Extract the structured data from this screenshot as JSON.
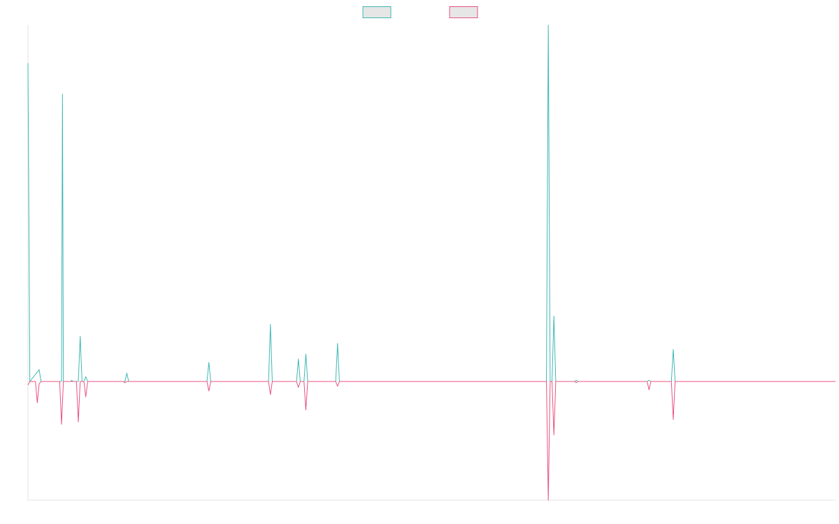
{
  "chart_data": {
    "type": "line",
    "title": "",
    "xlabel": "",
    "ylabel": "",
    "grid": false,
    "legend": "top-center",
    "point_count": 434,
    "ylim": [
      -100,
      300
    ],
    "series": [
      {
        "name": "",
        "color": "#3fb8b3",
        "fill": "#e6e6e6",
        "points": [
          [
            0,
            268
          ],
          [
            1,
            0
          ],
          [
            5,
            8
          ],
          [
            6,
            10
          ],
          [
            7,
            0
          ],
          [
            18,
            0
          ],
          [
            18.5,
            242
          ],
          [
            19,
            0
          ],
          [
            23,
            0
          ],
          [
            23.5,
            1
          ],
          [
            24,
            0
          ],
          [
            27,
            0
          ],
          [
            28,
            38
          ],
          [
            29,
            0
          ],
          [
            30,
            0
          ],
          [
            31,
            4
          ],
          [
            32,
            0
          ],
          [
            52,
            0
          ],
          [
            53,
            7
          ],
          [
            54,
            0
          ],
          [
            96,
            0
          ],
          [
            97,
            16
          ],
          [
            98,
            0
          ],
          [
            129,
            0
          ],
          [
            130,
            48
          ],
          [
            131,
            0
          ],
          [
            144,
            0
          ],
          [
            145,
            19
          ],
          [
            146,
            0
          ],
          [
            148,
            0
          ],
          [
            149,
            23
          ],
          [
            150,
            0
          ],
          [
            165,
            0
          ],
          [
            166,
            32
          ],
          [
            167,
            0
          ],
          [
            278,
            0
          ],
          [
            279,
            300
          ],
          [
            280,
            0
          ],
          [
            281,
            0
          ],
          [
            282,
            55
          ],
          [
            283,
            0
          ],
          [
            293,
            0
          ],
          [
            294,
            1
          ],
          [
            295,
            0
          ],
          [
            332,
            0
          ],
          [
            333,
            1
          ],
          [
            334,
            0
          ],
          [
            345,
            0
          ],
          [
            346,
            27
          ],
          [
            347,
            0
          ],
          [
            433,
            0
          ]
        ]
      },
      {
        "name": "",
        "color": "#e8527f",
        "fill": "#e6e6e6",
        "points": [
          [
            0,
            -3
          ],
          [
            1,
            0
          ],
          [
            4,
            0
          ],
          [
            5,
            -18
          ],
          [
            6,
            -2
          ],
          [
            7,
            0
          ],
          [
            17,
            0
          ],
          [
            18,
            -36
          ],
          [
            19,
            0
          ],
          [
            26,
            0
          ],
          [
            27,
            -34
          ],
          [
            28,
            0
          ],
          [
            30,
            0
          ],
          [
            31,
            -13
          ],
          [
            32,
            0
          ],
          [
            51,
            0
          ],
          [
            52,
            -1
          ],
          [
            53,
            0
          ],
          [
            96,
            0
          ],
          [
            97,
            -8
          ],
          [
            98,
            0
          ],
          [
            129,
            0
          ],
          [
            130,
            -11
          ],
          [
            131,
            0
          ],
          [
            144,
            0
          ],
          [
            145,
            -5
          ],
          [
            146,
            0
          ],
          [
            148,
            0
          ],
          [
            149,
            -24
          ],
          [
            150,
            0
          ],
          [
            165,
            0
          ],
          [
            166,
            -4
          ],
          [
            167,
            0
          ],
          [
            278,
            0
          ],
          [
            279,
            -100
          ],
          [
            280,
            0
          ],
          [
            281,
            0
          ],
          [
            282,
            -45
          ],
          [
            283,
            0
          ],
          [
            293,
            0
          ],
          [
            294,
            -1
          ],
          [
            295,
            0
          ],
          [
            332,
            0
          ],
          [
            333,
            -7
          ],
          [
            334,
            0
          ],
          [
            345,
            0
          ],
          [
            346,
            -32
          ],
          [
            347,
            0
          ],
          [
            433,
            0
          ]
        ]
      }
    ]
  }
}
